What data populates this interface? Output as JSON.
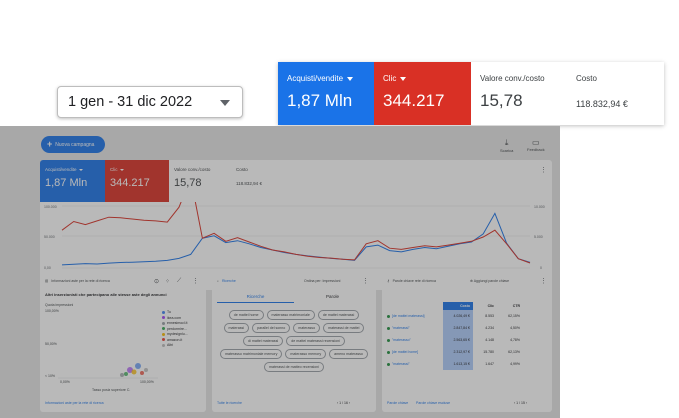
{
  "date_range": {
    "label": "1 gen - 31 dic 2022"
  },
  "metric_callout": [
    {
      "label": "Acquisti/vendite",
      "value": "1,87 Mln",
      "color": "#1a73e8"
    },
    {
      "label": "Clic",
      "value": "344.217",
      "color": "#d93025"
    },
    {
      "label": "Valore conv./costo",
      "value": "15,78"
    },
    {
      "label": "Costo",
      "value": "118.832,94 €"
    }
  ],
  "toolbar": {
    "new_campaign": "Nuova campagna",
    "download": "Scarica",
    "feedback": "Feedback"
  },
  "overview": {
    "metrics": [
      {
        "label": "Acquisti/vendite",
        "value": "1,87 Mln"
      },
      {
        "label": "Clic",
        "value": "344.217"
      },
      {
        "label": "Valore conv./costo",
        "value": "15,78"
      },
      {
        "label": "Costo",
        "value": "118.832,94 €"
      }
    ],
    "y_left": [
      "100.000",
      "50.000",
      "0,00"
    ],
    "y_right": [
      "10.000",
      "5.000",
      "0"
    ],
    "x_start": "01 gen 2021",
    "x_end": "04 dic 2022",
    "series_blue": [
      5000,
      6200,
      7100,
      6400,
      7900,
      8800,
      9400,
      10100,
      10900,
      12200,
      15500,
      22000,
      48000,
      52000,
      41000,
      44000,
      39000,
      33000,
      29000,
      25000,
      22000,
      19500,
      17500,
      15500,
      14000,
      12500,
      34000,
      37000,
      28000,
      26000,
      30000,
      33000,
      31000,
      35000,
      39000,
      42000,
      55000,
      88000,
      40000,
      15000,
      9000
    ],
    "series_red": [
      6100,
      7500,
      7000,
      7600,
      8200,
      8100,
      7900,
      7700,
      7600,
      7400,
      9800,
      14500,
      4800,
      5600,
      4300,
      4900,
      4200,
      3500,
      2900,
      2600,
      2200,
      1900,
      1700,
      1600,
      1400,
      1300,
      3900,
      4400,
      3200,
      3000,
      3300,
      3600,
      3400,
      3700,
      4000,
      4300,
      5000,
      6100,
      3900,
      1500,
      800
    ]
  },
  "auction_card": {
    "title": "Informazioni aste per la rete di ricerca",
    "heading": "Altri inserzionisti che partecipano alle stesse aste degli annunci",
    "metric_select": "Quota impressioni",
    "y_top": "100,00%",
    "y_mid": "50,00%",
    "y_low": "< 10%",
    "x_left": "0,00%",
    "x_right": "100,00%",
    "x_select": "Tasso posiz superiore C.",
    "legend": [
      {
        "label": "Tu",
        "color": "#4285f4"
      },
      {
        "label": "ikea.com",
        "color": "#a142f4"
      },
      {
        "label": "ennesimocl.it",
        "color": "#9aa0a6"
      },
      {
        "label": "perdormire...",
        "color": "#34a853"
      },
      {
        "label": "mydesignlu...",
        "color": "#fbbc04"
      },
      {
        "label": "amazon.it",
        "color": "#ea4335"
      },
      {
        "label": "Altri",
        "color": "#bdbdbd"
      }
    ],
    "link": "Informazioni aste per la rete di ricerca"
  },
  "searches_card": {
    "title": "Ricerche",
    "sort": "Ordina per: Impressioni",
    "tabs": [
      "Ricerche",
      "Parole"
    ],
    "chips": [
      "de mattei home",
      "materasso matrimoniale",
      "de mattei materassi",
      "materassi",
      "parallel del sonno",
      "materasso",
      "materassi de mattei",
      "di mattei materassi",
      "de mattei materassi recensioni",
      "materasso matrimoniale memory",
      "materasso memory",
      "ameno materasso",
      "materassi de matteo recensioni"
    ],
    "link": "Tutte le ricerche",
    "pager": "1 / 16"
  },
  "keywords_card": {
    "title": "Parole chiave rete di ricerca",
    "add_link": "Aggiungi parole chiave",
    "headers": [
      "Costo",
      "Clic",
      "CTR"
    ],
    "rows": [
      {
        "kw": "[de mattei materassi]",
        "cost": "4.026,49 €",
        "clicks": "8.553",
        "ctr": "62,15%"
      },
      {
        "kw": "\"materassi\"",
        "cost": "2.847,84 €",
        "clicks": "4.234",
        "ctr": "4,50%"
      },
      {
        "kw": "\"materasso\"",
        "cost": "2.563,65 €",
        "clicks": "4.148",
        "ctr": "4,78%"
      },
      {
        "kw": "[de mattei home]",
        "cost": "2.312,97 €",
        "clicks": "15.780",
        "ctr": "62,13%"
      },
      {
        "kw": "\"materassi\"",
        "cost": "1.613,15 €",
        "clicks": "1.647",
        "ctr": "4,99%"
      }
    ],
    "footer_left": "Parole chiave",
    "footer_mid": "Parole chiave escluse",
    "pager": "1 / 15"
  },
  "colors": {
    "blue": "#1a73e8",
    "red": "#d93025"
  }
}
